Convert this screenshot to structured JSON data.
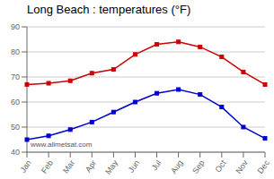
{
  "chart_data": {
    "type": "line",
    "title": "Long Beach : temperatures (°F)",
    "categories": [
      "Jan",
      "Feb",
      "Mar",
      "Apr",
      "May",
      "Jun",
      "Jul",
      "Aug",
      "Sep",
      "Oct",
      "Nov",
      "Dec"
    ],
    "series": [
      {
        "color": "#cc0000",
        "marker": "square",
        "values": [
          67,
          67.5,
          68.5,
          71.5,
          73,
          79,
          83,
          84,
          82,
          78,
          72,
          67
        ]
      },
      {
        "color": "#0000cc",
        "marker": "square",
        "values": [
          45,
          46.5,
          49,
          52,
          56,
          60,
          63.5,
          65,
          63,
          58,
          50,
          45.5
        ]
      }
    ],
    "ylim": [
      40,
      90
    ],
    "yticks": [
      40,
      50,
      60,
      70,
      80,
      90
    ],
    "grid": true,
    "annotations": [
      "www.allmetsat.com"
    ]
  }
}
